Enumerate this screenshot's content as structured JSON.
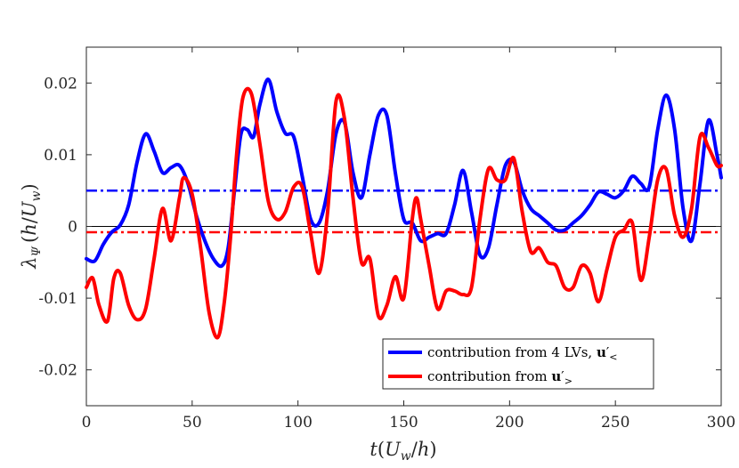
{
  "chart_data": {
    "type": "line",
    "title": "",
    "xlabel": "t(U_w/h)",
    "ylabel": "λ_Ψ (h/U_w)",
    "xlim": [
      0,
      300
    ],
    "ylim": [
      -0.025,
      0.025
    ],
    "xticks": [
      0,
      50,
      100,
      150,
      200,
      250,
      300
    ],
    "xtick_labels": [
      "0",
      "50",
      "100",
      "150",
      "200",
      "250",
      "300"
    ],
    "yticks": [
      -0.02,
      -0.01,
      0,
      0.01,
      0.02
    ],
    "ytick_labels": [
      "-0.02",
      "-0.01",
      "0",
      "0.01",
      "0.02"
    ],
    "grid": false,
    "legend_position": "bottom-right",
    "zero_line": 0,
    "series": [
      {
        "name": "contribution from 4 LVs, u'_<",
        "color": "#0000ff",
        "mean": 0.005,
        "x": [
          0,
          4,
          8,
          12,
          16,
          20,
          24,
          28,
          32,
          36,
          40,
          44,
          48,
          52,
          56,
          60,
          64,
          67,
          70,
          73,
          76,
          79,
          82,
          86,
          90,
          94,
          98,
          102,
          106,
          110,
          114,
          118,
          122,
          126,
          130,
          134,
          138,
          142,
          146,
          150,
          154,
          158,
          162,
          166,
          170,
          174,
          178,
          182,
          186,
          190,
          194,
          198,
          202,
          206,
          210,
          214,
          218,
          222,
          226,
          230,
          234,
          238,
          242,
          246,
          250,
          254,
          258,
          262,
          266,
          270,
          274,
          278,
          282,
          286,
          290,
          294,
          298,
          300
        ],
        "values": [
          -0.0045,
          -0.0048,
          -0.0025,
          -0.0008,
          0.0002,
          0.003,
          0.009,
          0.0129,
          0.0105,
          0.0075,
          0.0082,
          0.0085,
          0.006,
          0.0015,
          -0.002,
          -0.0045,
          -0.0055,
          -0.003,
          0.005,
          0.0128,
          0.0135,
          0.0125,
          0.017,
          0.0205,
          0.016,
          0.013,
          0.0125,
          0.007,
          0.001,
          0.0005,
          0.005,
          0.013,
          0.0145,
          0.0075,
          0.004,
          0.01,
          0.0155,
          0.0155,
          0.0075,
          0.001,
          0.0005,
          -0.002,
          -0.0015,
          -0.001,
          -0.001,
          0.003,
          0.0078,
          0.002,
          -0.004,
          -0.003,
          0.003,
          0.0085,
          0.009,
          0.005,
          0.0025,
          0.0015,
          0.0005,
          -0.0005,
          -0.0005,
          0.0005,
          0.0015,
          0.003,
          0.0048,
          0.0045,
          0.004,
          0.005,
          0.007,
          0.006,
          0.0055,
          0.0135,
          0.0183,
          0.0135,
          0.0025,
          -0.002,
          0.006,
          0.0148,
          0.01,
          0.0068
        ]
      },
      {
        "name": "contribution from u'_>",
        "color": "#ff0000",
        "mean": -0.0008,
        "x": [
          0,
          3,
          6,
          10,
          13,
          16,
          20,
          24,
          28,
          32,
          36,
          40,
          44,
          46,
          50,
          54,
          58,
          62,
          65,
          68,
          71,
          74,
          78,
          82,
          86,
          90,
          94,
          98,
          102,
          106,
          110,
          114,
          118,
          122,
          126,
          130,
          134,
          138,
          142,
          146,
          150,
          154,
          156,
          158,
          162,
          166,
          170,
          174,
          178,
          182,
          186,
          190,
          194,
          198,
          202,
          206,
          210,
          214,
          218,
          222,
          226,
          230,
          234,
          238,
          242,
          246,
          250,
          254,
          258,
          262,
          266,
          270,
          274,
          278,
          282,
          286,
          290,
          294,
          298,
          300
        ],
        "values": [
          -0.0085,
          -0.0072,
          -0.011,
          -0.0132,
          -0.0072,
          -0.0065,
          -0.011,
          -0.013,
          -0.0115,
          -0.0045,
          0.0025,
          -0.002,
          0.004,
          0.0068,
          0.0045,
          -0.003,
          -0.012,
          -0.0155,
          -0.011,
          -0.002,
          0.01,
          0.018,
          0.0185,
          0.0115,
          0.0035,
          0.001,
          0.002,
          0.0055,
          0.0055,
          -0.001,
          -0.0065,
          0.002,
          0.0175,
          0.015,
          0.004,
          -0.005,
          -0.0045,
          -0.0125,
          -0.011,
          -0.007,
          -0.01,
          0.001,
          0.004,
          0.001,
          -0.0055,
          -0.0115,
          -0.009,
          -0.009,
          -0.0095,
          -0.0085,
          0.001,
          0.008,
          0.0065,
          0.0065,
          0.0095,
          0.002,
          -0.0035,
          -0.003,
          -0.005,
          -0.0055,
          -0.0085,
          -0.0085,
          -0.0055,
          -0.0065,
          -0.0105,
          -0.006,
          -0.0015,
          -0.0005,
          0.0005,
          -0.0075,
          -0.0015,
          0.0065,
          0.008,
          0.0015,
          -0.0015,
          0.0025,
          0.0125,
          0.011,
          0.0085,
          0.0085
        ]
      }
    ],
    "legend": [
      {
        "label": "contribution from 4 LVs, ",
        "symbol": "u",
        "prime": "′",
        "sub": "<",
        "color": "#0000ff"
      },
      {
        "label": "contribution from ",
        "symbol": "u",
        "prime": "′",
        "sub": ">",
        "color": "#ff0000"
      }
    ]
  },
  "axis_labels": {
    "x": {
      "t": "t",
      "open": "(",
      "U": "U",
      "w": "w",
      "slash": "/",
      "h": "h",
      "close": ")"
    },
    "y": {
      "lambda": "λ",
      "psi": "Ψ",
      "open": "(",
      "h": "h",
      "slash": "/",
      "U": "U",
      "w": "w",
      "close": ")"
    }
  }
}
